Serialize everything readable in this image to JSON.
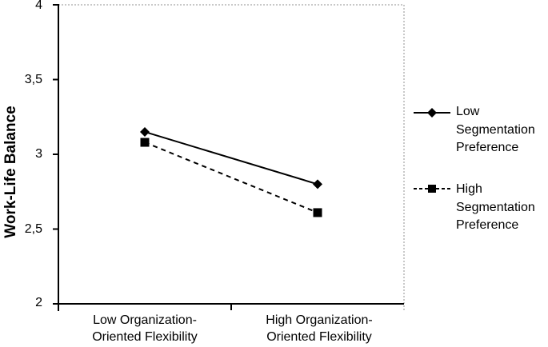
{
  "chart_data": {
    "type": "line",
    "title": "",
    "categories": [
      "Low Organization-Oriented Flexibility",
      "High Organization-Oriented Flexibility"
    ],
    "series": [
      {
        "name": "Low Segmentation Preference",
        "marker": "diamond",
        "line_style": "solid",
        "values": [
          3.15,
          2.8
        ]
      },
      {
        "name": "High Segmentation Preference",
        "marker": "square",
        "line_style": "dashed",
        "values": [
          3.08,
          2.61
        ]
      }
    ],
    "xlabel": "",
    "ylabel": "Work-Life Balance",
    "ylim": [
      2,
      4
    ],
    "ytick_values": [
      4,
      3.5,
      3,
      2.5,
      2
    ],
    "ytick_labels": [
      "4",
      "3,5",
      "3",
      "2,5",
      "2"
    ],
    "decimal_separator": ",",
    "grid": false,
    "legend_position": "right",
    "colors": {
      "series": "#000000",
      "axis": "#000000",
      "frame_dotted": "#909090",
      "text": "#000000",
      "background": "#ffffff"
    }
  }
}
